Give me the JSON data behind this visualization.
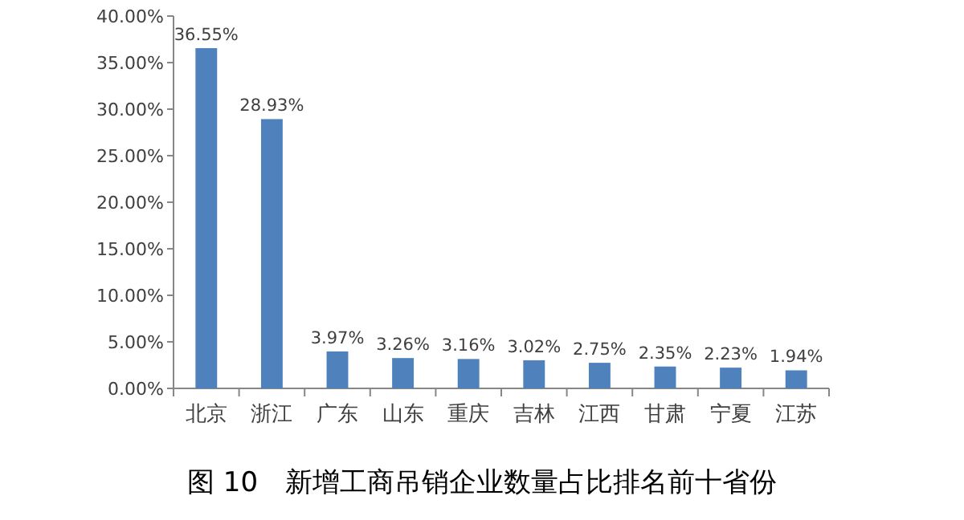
{
  "chart_data": {
    "type": "bar",
    "title": "图 10　新增工商吊销企业数量占比排名前十省份",
    "categories": [
      "北京",
      "浙江",
      "广东",
      "山东",
      "重庆",
      "吉林",
      "江西",
      "甘肃",
      "宁夏",
      "江苏"
    ],
    "values": [
      36.55,
      28.93,
      3.97,
      3.26,
      3.16,
      3.02,
      2.75,
      2.35,
      2.23,
      1.94
    ],
    "value_labels": [
      "36.55%",
      "28.93%",
      "3.97%",
      "3.26%",
      "3.16%",
      "3.02%",
      "2.75%",
      "2.35%",
      "2.23%",
      "1.94%"
    ],
    "color": "#4f81bd",
    "ylim": [
      0,
      40
    ],
    "yticks": [
      {
        "value": 0,
        "label": "0.00%"
      },
      {
        "value": 5,
        "label": "5.00%"
      },
      {
        "value": 10,
        "label": "10.00%"
      },
      {
        "value": 15,
        "label": "15.00%"
      },
      {
        "value": 20,
        "label": "20.00%"
      },
      {
        "value": 25,
        "label": "25.00%"
      },
      {
        "value": 30,
        "label": "30.00%"
      },
      {
        "value": 35,
        "label": "35.00%"
      },
      {
        "value": 40,
        "label": "40.00%"
      }
    ]
  }
}
